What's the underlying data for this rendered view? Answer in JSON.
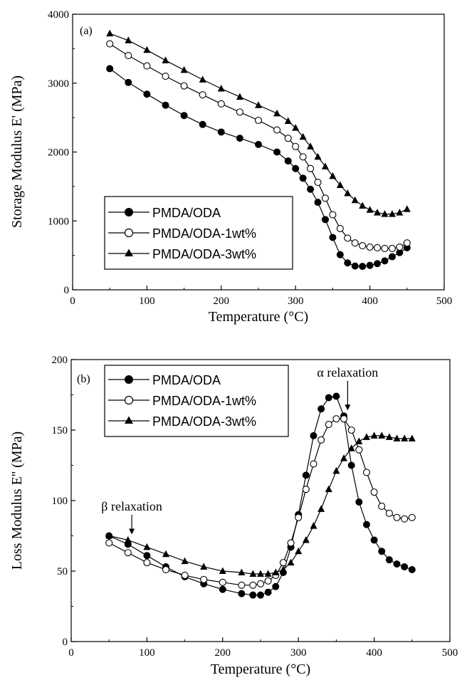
{
  "chart_data": [
    {
      "type": "line",
      "panel_label": "(a)",
      "xlabel": "Temperature (°C)",
      "ylabel": "Storage Modulus E' (MPa)",
      "xlim": [
        0,
        500
      ],
      "ylim": [
        0,
        4000
      ],
      "x_ticks": [
        0,
        100,
        200,
        300,
        400,
        500
      ],
      "y_ticks": [
        0,
        1000,
        2000,
        3000,
        4000
      ],
      "grid": false,
      "legend_position": "bottom-left",
      "series": [
        {
          "name": "PMDA/ODA",
          "marker": "filled-circle",
          "x": [
            50,
            75,
            100,
            125,
            150,
            175,
            200,
            225,
            250,
            275,
            290,
            300,
            310,
            320,
            330,
            340,
            350,
            360,
            370,
            380,
            390,
            400,
            410,
            420,
            430,
            440,
            450
          ],
          "y": [
            3210,
            3010,
            2840,
            2680,
            2530,
            2400,
            2290,
            2200,
            2110,
            2000,
            1870,
            1760,
            1620,
            1460,
            1270,
            1020,
            760,
            510,
            390,
            345,
            340,
            355,
            380,
            420,
            480,
            540,
            610
          ]
        },
        {
          "name": "PMDA/ODA-1wt%",
          "marker": "open-circle",
          "x": [
            50,
            75,
            100,
            125,
            150,
            175,
            200,
            225,
            250,
            275,
            290,
            300,
            310,
            320,
            330,
            340,
            350,
            360,
            370,
            380,
            390,
            400,
            410,
            420,
            430,
            440,
            450
          ],
          "y": [
            3570,
            3400,
            3250,
            3100,
            2960,
            2830,
            2700,
            2580,
            2460,
            2320,
            2200,
            2080,
            1930,
            1760,
            1560,
            1330,
            1090,
            890,
            750,
            680,
            640,
            620,
            610,
            600,
            600,
            620,
            680
          ]
        },
        {
          "name": "PMDA/ODA-3wt%",
          "marker": "filled-triangle",
          "x": [
            50,
            75,
            100,
            125,
            150,
            175,
            200,
            225,
            250,
            275,
            290,
            300,
            310,
            320,
            330,
            340,
            350,
            360,
            370,
            380,
            390,
            400,
            410,
            420,
            430,
            440,
            450
          ],
          "y": [
            3720,
            3620,
            3480,
            3330,
            3190,
            3050,
            2920,
            2800,
            2680,
            2560,
            2450,
            2350,
            2220,
            2080,
            1930,
            1790,
            1650,
            1520,
            1400,
            1300,
            1220,
            1160,
            1120,
            1100,
            1100,
            1120,
            1170
          ]
        }
      ]
    },
    {
      "type": "line",
      "panel_label": "(b)",
      "xlabel": "Temperature (°C)",
      "ylabel": "Loss Modulus E'' (MPa)",
      "xlim": [
        0,
        500
      ],
      "ylim": [
        0,
        200
      ],
      "x_ticks": [
        0,
        100,
        200,
        300,
        400,
        500
      ],
      "y_ticks": [
        0,
        50,
        100,
        150,
        200
      ],
      "grid": false,
      "legend_position": "top-left",
      "annotations": [
        {
          "text": "α relaxation",
          "x": 365,
          "y": 188,
          "arrow_to_y": 164
        },
        {
          "text": "β relaxation",
          "x": 80,
          "y": 93,
          "arrow_to_y": 76
        }
      ],
      "series": [
        {
          "name": "PMDA/ODA",
          "marker": "filled-circle",
          "x": [
            50,
            75,
            100,
            125,
            150,
            175,
            200,
            225,
            240,
            250,
            260,
            270,
            280,
            290,
            300,
            310,
            320,
            330,
            340,
            350,
            360,
            370,
            380,
            390,
            400,
            410,
            420,
            430,
            440,
            450
          ],
          "y": [
            75,
            69,
            61,
            53,
            46,
            41,
            37,
            34,
            33,
            33,
            35,
            39,
            49,
            67,
            90,
            118,
            146,
            165,
            173,
            174,
            160,
            125,
            99,
            83,
            72,
            64,
            58,
            55,
            53,
            51
          ]
        },
        {
          "name": "PMDA/ODA-1wt%",
          "marker": "open-circle",
          "x": [
            50,
            75,
            100,
            125,
            150,
            175,
            200,
            225,
            240,
            250,
            260,
            270,
            280,
            290,
            300,
            310,
            320,
            330,
            340,
            350,
            360,
            370,
            380,
            390,
            400,
            410,
            420,
            430,
            440,
            450
          ],
          "y": [
            70,
            63,
            56,
            51,
            47,
            44,
            42,
            40,
            40,
            41,
            43,
            47,
            56,
            70,
            88,
            108,
            126,
            143,
            154,
            158,
            158,
            150,
            136,
            120,
            106,
            96,
            91,
            88,
            87,
            88
          ]
        },
        {
          "name": "PMDA/ODA-3wt%",
          "marker": "filled-triangle",
          "x": [
            50,
            75,
            100,
            125,
            150,
            175,
            200,
            225,
            240,
            250,
            260,
            270,
            280,
            290,
            300,
            310,
            320,
            330,
            340,
            350,
            360,
            370,
            380,
            390,
            400,
            410,
            420,
            430,
            440,
            450
          ],
          "y": [
            75,
            72,
            67,
            62,
            57,
            53,
            50,
            49,
            48,
            48,
            48,
            49,
            51,
            56,
            64,
            72,
            82,
            94,
            108,
            121,
            130,
            137,
            142,
            145,
            146,
            146,
            145,
            144,
            144,
            144
          ]
        }
      ]
    }
  ]
}
